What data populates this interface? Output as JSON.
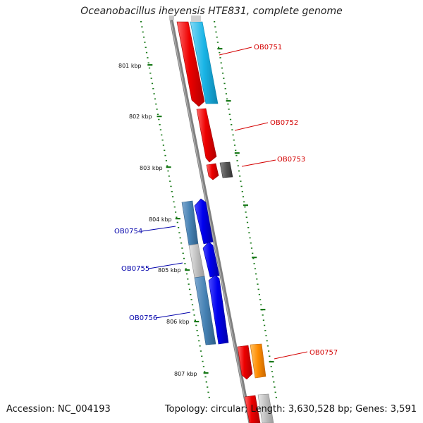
{
  "title": "Oceanobacillus iheyensis HTE831, complete genome",
  "footer": {
    "accession": "Accession: NC_004193",
    "topology": "Topology: circular; Length: 3,630,528 bp; Genes: 3,591"
  },
  "ticks": [
    {
      "label": "801 kbp"
    },
    {
      "label": "802 kbp"
    },
    {
      "label": "803 kbp"
    },
    {
      "label": "804 kbp"
    },
    {
      "label": "805 kbp"
    },
    {
      "label": "806 kbp"
    },
    {
      "label": "807 kbp"
    }
  ],
  "gene_labels": [
    {
      "text": "OB0751",
      "color": "#d40000"
    },
    {
      "text": "OB0752",
      "color": "#d40000"
    },
    {
      "text": "OB0753",
      "color": "#d40000"
    },
    {
      "text": "OB0754",
      "color": "#0000aa"
    },
    {
      "text": "OB0755",
      "color": "#0000aa"
    },
    {
      "text": "OB0756",
      "color": "#0000aa"
    },
    {
      "text": "OB0757",
      "color": "#d40000"
    }
  ],
  "colors": {
    "backbone": "#808080",
    "tick": "#1a7a1a",
    "forward_gene": "#ee0000",
    "reverse_gene": "#0000ee",
    "cyan_gene": "#19b4e6",
    "steel_gene": "#4682b4",
    "gray_gene": "#c0c0c0",
    "dark_gene": "#555555",
    "orange_gene": "#ff8c00"
  }
}
